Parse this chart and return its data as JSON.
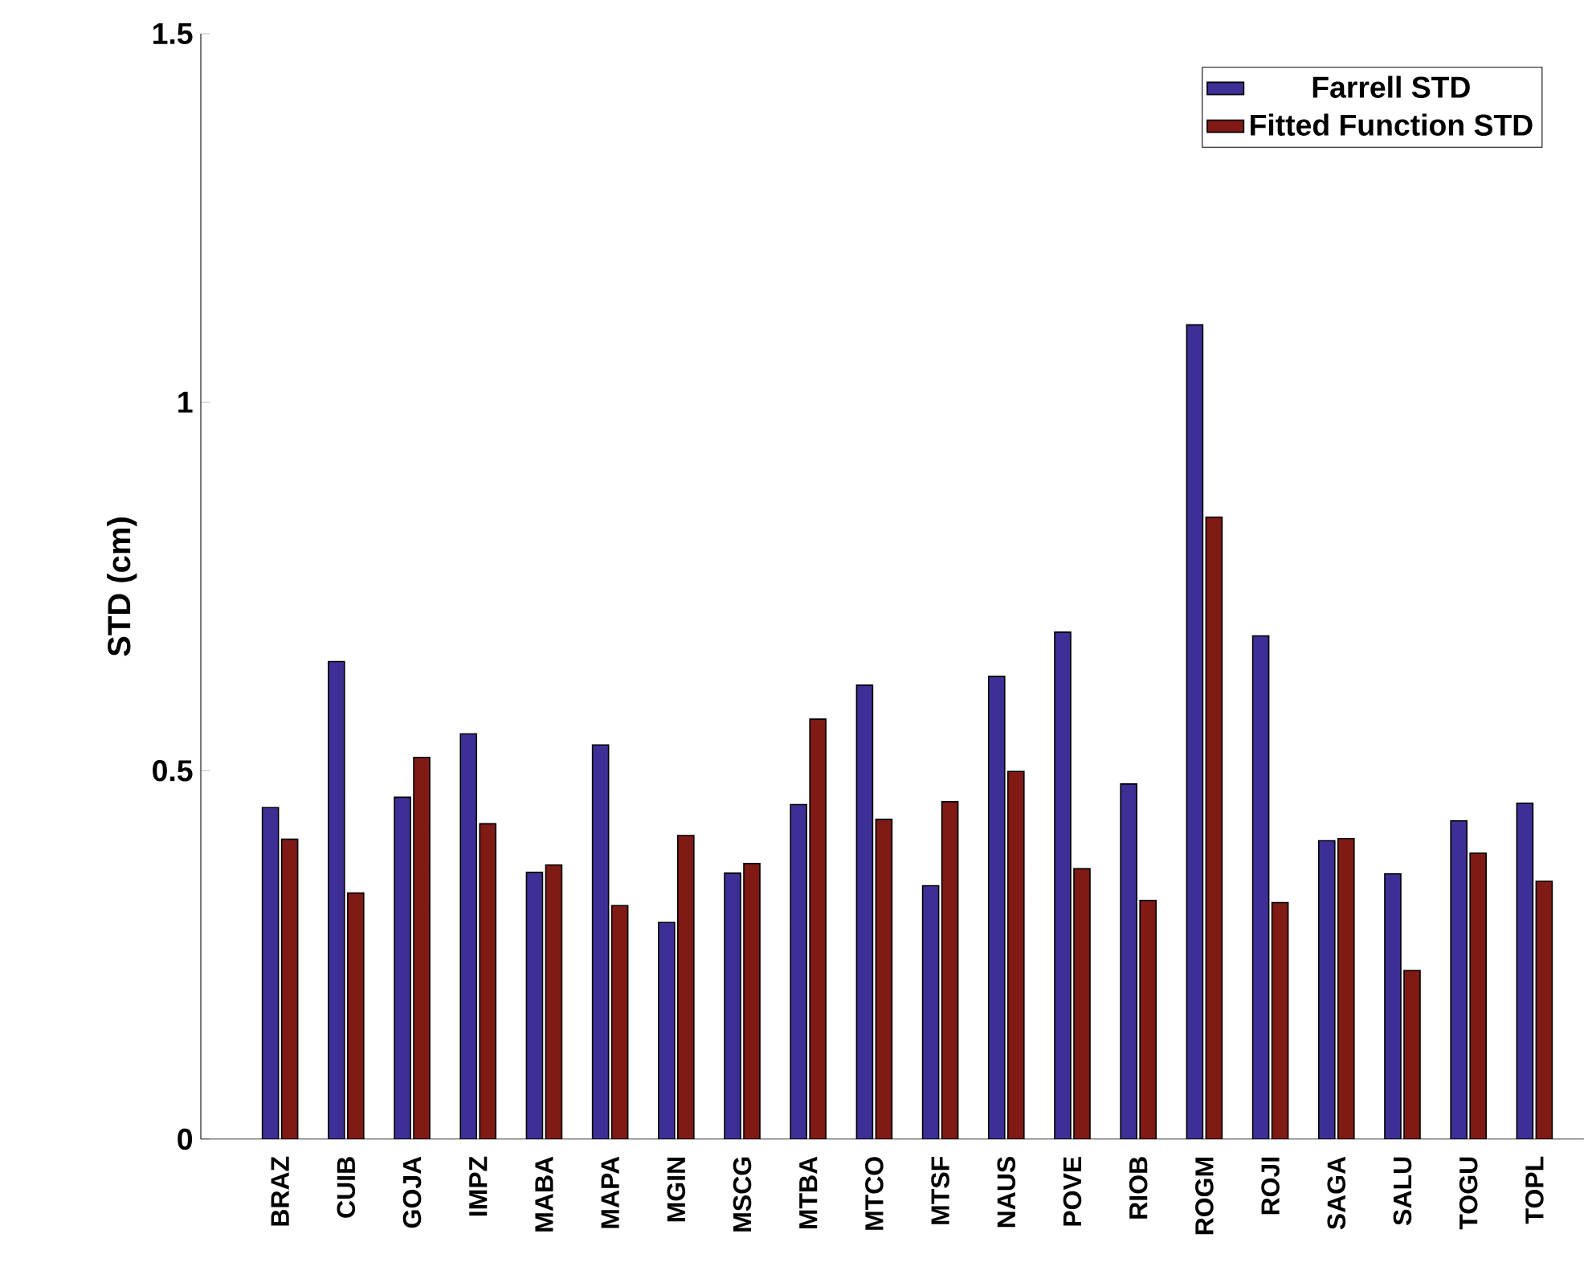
{
  "chart_data": {
    "type": "bar",
    "ylabel": "STD (cm)",
    "categories": [
      "BRAZ",
      "CUIB",
      "GOJA",
      "IMPZ",
      "MABA",
      "MAPA",
      "MGIN",
      "MSCG",
      "MTBA",
      "MTCO",
      "MTSF",
      "NAUS",
      "POVE",
      "RIOB",
      "ROGM",
      "ROJI",
      "SAGA",
      "SALU",
      "TOGU",
      "TOPL"
    ],
    "series": [
      {
        "name": "Farrell STD",
        "color": "#3c3096",
        "values": [
          0.45,
          0.648,
          0.464,
          0.55,
          0.362,
          0.535,
          0.294,
          0.361,
          0.454,
          0.616,
          0.344,
          0.628,
          0.688,
          0.482,
          1.105,
          0.683,
          0.405,
          0.36,
          0.432,
          0.456
        ]
      },
      {
        "name": "Fitted Function STD",
        "color": "#7f1a14",
        "values": [
          0.407,
          0.334,
          0.518,
          0.428,
          0.372,
          0.317,
          0.412,
          0.374,
          0.57,
          0.434,
          0.458,
          0.499,
          0.367,
          0.324,
          0.844,
          0.321,
          0.408,
          0.229,
          0.388,
          0.35
        ]
      }
    ],
    "ylim": [
      0,
      1.5
    ],
    "yticks": [
      0,
      0.5,
      1,
      1.5
    ],
    "grid": false,
    "legend": "top right"
  }
}
